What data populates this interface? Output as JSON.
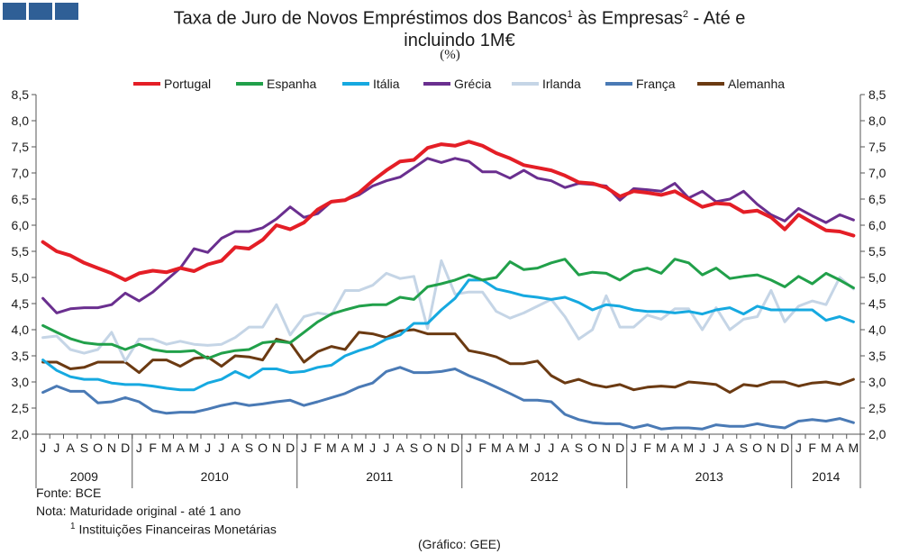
{
  "header": {
    "title_line1_a": "Taxa de Juro de Novos Empréstimos dos Bancos",
    "sup1": "1",
    "title_line1_b": " às Empresas",
    "sup2": "2",
    "title_line1_c": " - Até e",
    "title_line2": "incluindo 1M€",
    "unit": "(%)"
  },
  "footer": {
    "source": "Fonte: BCE",
    "note": "Nota: Maturidade original - até 1 ano",
    "note2_sup": "1",
    "note2": " Instituições Financeiras Monetárias",
    "credit": "(Gráfico: GEE)"
  },
  "colors": {
    "logo": "#2f5f96"
  },
  "chart_data": {
    "type": "line",
    "ylim": [
      2.0,
      8.5
    ],
    "y_ticks_left": [
      "8,5",
      "8,0",
      "7,5",
      "7,0",
      "6,5",
      "6,0",
      "5,5",
      "5,0",
      "4,5",
      "4,0",
      "3,5",
      "3,0",
      "2,5",
      "2,0"
    ],
    "y_ticks_right": [
      "8,5",
      "8,0",
      "7,5",
      "7,0",
      "6,5",
      "6,0",
      "5,5",
      "5,0",
      "4,5",
      "4,0",
      "3,5",
      "3,0",
      "2,5",
      "2,0"
    ],
    "y_tick_values": [
      8.5,
      8.0,
      7.5,
      7.0,
      6.5,
      6.0,
      5.5,
      5.0,
      4.5,
      4.0,
      3.5,
      3.0,
      2.5,
      2.0
    ],
    "month_labels": [
      "J",
      "J",
      "A",
      "S",
      "O",
      "N",
      "D",
      "J",
      "F",
      "M",
      "A",
      "M",
      "J",
      "J",
      "A",
      "S",
      "O",
      "N",
      "D",
      "J",
      "F",
      "M",
      "A",
      "M",
      "J",
      "J",
      "A",
      "S",
      "O",
      "N",
      "D",
      "J",
      "F",
      "M",
      "A",
      "M",
      "J",
      "J",
      "A",
      "S",
      "O",
      "N",
      "D",
      "J",
      "F",
      "M",
      "A",
      "M",
      "J",
      "J",
      "A",
      "S",
      "O",
      "N",
      "D",
      "J",
      "F",
      "M",
      "A",
      "M"
    ],
    "years": [
      {
        "label": "2009",
        "start": 0,
        "end": 7
      },
      {
        "label": "2010",
        "start": 7,
        "end": 19
      },
      {
        "label": "2011",
        "start": 19,
        "end": 31
      },
      {
        "label": "2012",
        "start": 31,
        "end": 43
      },
      {
        "label": "2013",
        "start": 43,
        "end": 55
      },
      {
        "label": "2014",
        "start": 55,
        "end": 60
      }
    ],
    "legend_position": "top",
    "grid": false,
    "series": [
      {
        "name": "Portugal",
        "color": "#e41e26",
        "width": 4,
        "values": [
          5.68,
          5.5,
          5.42,
          5.28,
          5.18,
          5.08,
          4.95,
          5.08,
          5.13,
          5.1,
          5.18,
          5.12,
          5.25,
          5.32,
          5.58,
          5.55,
          5.72,
          6.0,
          5.92,
          6.05,
          6.3,
          6.45,
          6.48,
          6.62,
          6.85,
          7.05,
          7.22,
          7.25,
          7.48,
          7.55,
          7.52,
          7.6,
          7.52,
          7.38,
          7.28,
          7.15,
          7.1,
          7.05,
          6.95,
          6.82,
          6.8,
          6.72,
          6.55,
          6.65,
          6.62,
          6.58,
          6.65,
          6.5,
          6.35,
          6.42,
          6.4,
          6.25,
          6.28,
          6.15,
          5.92,
          6.2,
          6.05,
          5.9,
          5.88,
          5.8
        ]
      },
      {
        "name": "Espanha",
        "color": "#21a04a",
        "width": 3,
        "values": [
          4.08,
          3.95,
          3.83,
          3.75,
          3.72,
          3.72,
          3.62,
          3.72,
          3.62,
          3.58,
          3.58,
          3.6,
          3.45,
          3.55,
          3.6,
          3.62,
          3.75,
          3.78,
          3.75,
          3.95,
          4.15,
          4.3,
          4.38,
          4.45,
          4.48,
          4.48,
          4.62,
          4.58,
          4.82,
          4.88,
          4.95,
          5.05,
          4.95,
          5.0,
          5.3,
          5.15,
          5.18,
          5.28,
          5.35,
          5.05,
          5.1,
          5.08,
          4.95,
          5.12,
          5.18,
          5.08,
          5.35,
          5.28,
          5.05,
          5.18,
          4.98,
          5.02,
          5.05,
          4.95,
          4.82,
          5.02,
          4.88,
          5.08,
          4.95,
          4.8
        ]
      },
      {
        "name": "Itália",
        "color": "#16a9e0",
        "width": 3,
        "values": [
          3.42,
          3.22,
          3.1,
          3.05,
          3.05,
          2.98,
          2.95,
          2.95,
          2.92,
          2.88,
          2.85,
          2.85,
          2.98,
          3.05,
          3.2,
          3.08,
          3.25,
          3.25,
          3.18,
          3.2,
          3.28,
          3.32,
          3.5,
          3.6,
          3.68,
          3.82,
          3.9,
          4.12,
          4.12,
          4.38,
          4.6,
          4.95,
          4.95,
          4.78,
          4.72,
          4.65,
          4.62,
          4.58,
          4.62,
          4.52,
          4.38,
          4.48,
          4.45,
          4.38,
          4.35,
          4.35,
          4.32,
          4.35,
          4.3,
          4.38,
          4.42,
          4.3,
          4.45,
          4.38,
          4.38,
          4.38,
          4.38,
          4.18,
          4.25,
          4.15
        ]
      },
      {
        "name": "Grécia",
        "color": "#6a2f8f",
        "width": 3,
        "values": [
          4.6,
          4.32,
          4.4,
          4.42,
          4.42,
          4.48,
          4.7,
          4.55,
          4.72,
          4.95,
          5.18,
          5.55,
          5.48,
          5.75,
          5.88,
          5.88,
          5.95,
          6.12,
          6.35,
          6.15,
          6.22,
          6.45,
          6.48,
          6.58,
          6.75,
          6.85,
          6.92,
          7.1,
          7.28,
          7.2,
          7.28,
          7.22,
          7.02,
          7.02,
          6.9,
          7.05,
          6.9,
          6.85,
          6.72,
          6.8,
          6.78,
          6.75,
          6.48,
          6.7,
          6.68,
          6.65,
          6.8,
          6.52,
          6.65,
          6.45,
          6.5,
          6.65,
          6.4,
          6.2,
          6.08,
          6.32,
          6.18,
          6.05,
          6.2,
          6.1
        ]
      },
      {
        "name": "Irlanda",
        "color": "#c5d5e6",
        "width": 3,
        "values": [
          3.85,
          3.88,
          3.62,
          3.55,
          3.62,
          3.95,
          3.4,
          3.82,
          3.82,
          3.72,
          3.78,
          3.72,
          3.7,
          3.72,
          3.85,
          4.05,
          4.05,
          4.48,
          3.9,
          4.25,
          4.32,
          4.28,
          4.75,
          4.75,
          4.85,
          5.08,
          4.98,
          5.02,
          4.02,
          5.32,
          4.68,
          4.72,
          4.72,
          4.35,
          4.22,
          4.32,
          4.45,
          4.58,
          4.25,
          3.82,
          4.0,
          4.65,
          4.05,
          4.05,
          4.28,
          4.2,
          4.4,
          4.4,
          4.0,
          4.42,
          4.0,
          4.2,
          4.25,
          4.75,
          4.15,
          4.45,
          4.55,
          4.48,
          5.0,
          4.78
        ]
      },
      {
        "name": "França",
        "color": "#4a7ab5",
        "width": 3,
        "values": [
          2.8,
          2.92,
          2.82,
          2.82,
          2.6,
          2.62,
          2.7,
          2.62,
          2.45,
          2.4,
          2.42,
          2.42,
          2.48,
          2.55,
          2.6,
          2.55,
          2.58,
          2.62,
          2.65,
          2.55,
          2.62,
          2.7,
          2.78,
          2.9,
          2.98,
          3.2,
          3.28,
          3.18,
          3.18,
          3.2,
          3.25,
          3.12,
          3.02,
          2.9,
          2.78,
          2.65,
          2.65,
          2.62,
          2.38,
          2.28,
          2.22,
          2.2,
          2.2,
          2.12,
          2.18,
          2.1,
          2.12,
          2.12,
          2.1,
          2.18,
          2.15,
          2.15,
          2.2,
          2.15,
          2.12,
          2.25,
          2.28,
          2.25,
          2.3,
          2.22
        ]
      },
      {
        "name": "Alemanha",
        "color": "#6b3a12",
        "width": 3,
        "values": [
          3.38,
          3.38,
          3.25,
          3.28,
          3.38,
          3.38,
          3.38,
          3.18,
          3.42,
          3.42,
          3.3,
          3.45,
          3.48,
          3.3,
          3.5,
          3.48,
          3.42,
          3.82,
          3.75,
          3.38,
          3.58,
          3.68,
          3.62,
          3.95,
          3.92,
          3.85,
          3.98,
          4.0,
          3.92,
          3.92,
          3.92,
          3.6,
          3.55,
          3.48,
          3.35,
          3.35,
          3.4,
          3.12,
          2.98,
          3.05,
          2.95,
          2.9,
          2.95,
          2.85,
          2.9,
          2.92,
          2.9,
          3.0,
          2.98,
          2.95,
          2.8,
          2.95,
          2.92,
          3.0,
          3.0,
          2.92,
          2.98,
          3.0,
          2.95,
          3.05
        ]
      }
    ]
  }
}
